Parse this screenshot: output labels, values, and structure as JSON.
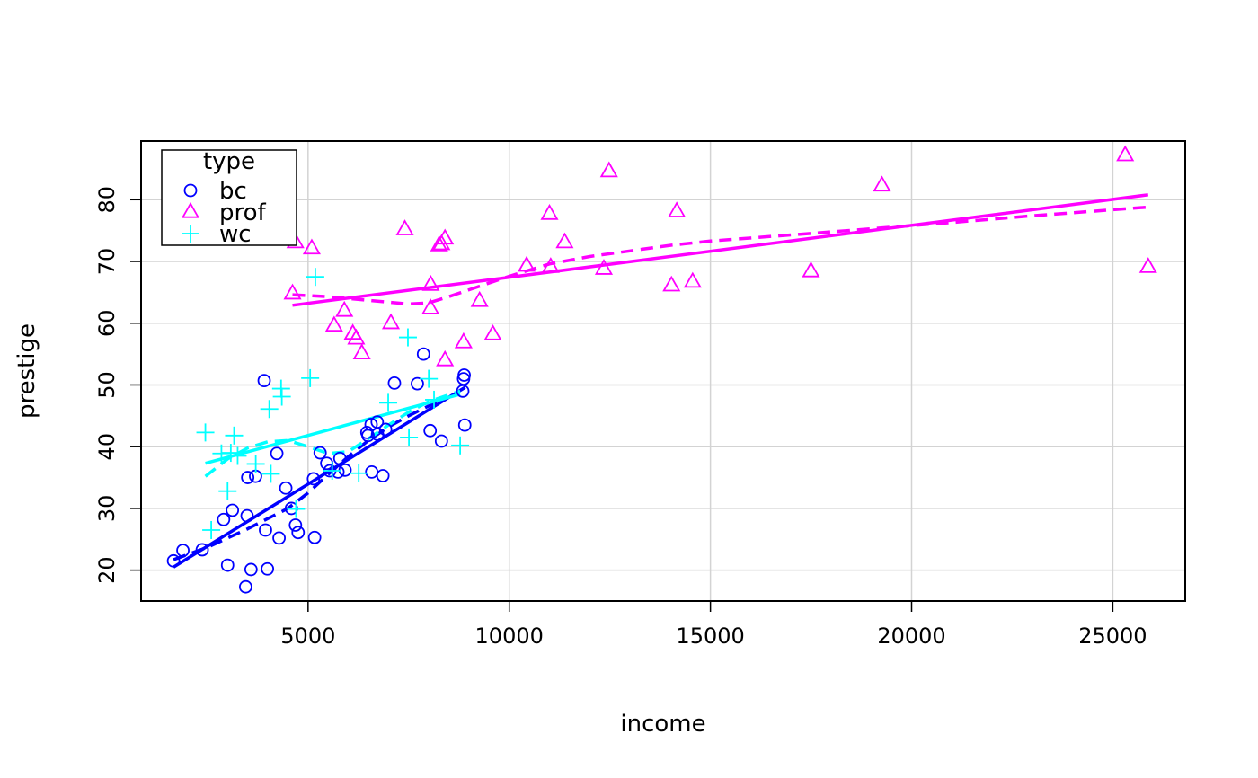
{
  "chart_data": {
    "type": "scatter",
    "xlabel": "income",
    "ylabel": "prestige",
    "xlim": [
      850,
      26800
    ],
    "ylim": [
      15,
      89.5
    ],
    "x_ticks": [
      5000,
      10000,
      15000,
      20000,
      25000
    ],
    "y_ticks": [
      20,
      30,
      40,
      50,
      60,
      70,
      80
    ],
    "grid": true,
    "legend": {
      "title": "type",
      "placement": "top-left",
      "entries": [
        "bc",
        "prof",
        "wc"
      ]
    },
    "series": [
      {
        "name": "bc",
        "color": "#0000ff",
        "marker": "circle",
        "points": [
          [
            1656,
            21.5
          ],
          [
            1890,
            23.2
          ],
          [
            2370,
            23.3
          ],
          [
            2901,
            28.2
          ],
          [
            3000,
            20.8
          ],
          [
            3120,
            29.7
          ],
          [
            3450,
            17.3
          ],
          [
            3485,
            28.8
          ],
          [
            3500,
            35.0
          ],
          [
            3582,
            20.1
          ],
          [
            3696,
            35.2
          ],
          [
            3942,
            26.5
          ],
          [
            3910,
            50.7
          ],
          [
            3990,
            20.2
          ],
          [
            4224,
            38.9
          ],
          [
            4280,
            25.2
          ],
          [
            4447,
            33.3
          ],
          [
            4586,
            30.0
          ],
          [
            4687,
            27.3
          ],
          [
            4753,
            26.1
          ],
          [
            5134,
            34.8
          ],
          [
            5163,
            25.3
          ],
          [
            5299,
            39.0
          ],
          [
            5464,
            37.3
          ],
          [
            5540,
            36.1
          ],
          [
            5743,
            35.9
          ],
          [
            5791,
            38.1
          ],
          [
            5920,
            36.2
          ],
          [
            6462,
            42.3
          ],
          [
            6490,
            41.8
          ],
          [
            6567,
            43.6
          ],
          [
            6582,
            35.9
          ],
          [
            6719,
            44.0
          ],
          [
            6727,
            42.0
          ],
          [
            6860,
            35.3
          ],
          [
            6928,
            42.8
          ],
          [
            7147,
            50.3
          ],
          [
            7716,
            50.2
          ],
          [
            7869,
            55.0
          ],
          [
            8034,
            42.6
          ],
          [
            8316,
            40.9
          ],
          [
            8845,
            49.0
          ],
          [
            8865,
            51.0
          ],
          [
            8880,
            51.6
          ],
          [
            8895,
            43.5
          ]
        ],
        "fit_line": [
          [
            1656,
            20.5
          ],
          [
            8900,
            49.6
          ]
        ],
        "smooth_line": [
          [
            1656,
            21.7
          ],
          [
            2500,
            23.7
          ],
          [
            3500,
            26.7
          ],
          [
            4500,
            30.0
          ],
          [
            5000,
            32.5
          ],
          [
            5500,
            35.5
          ],
          [
            6000,
            38.4
          ],
          [
            6500,
            41.0
          ],
          [
            7000,
            43.2
          ],
          [
            7500,
            45.0
          ],
          [
            8000,
            46.6
          ],
          [
            8500,
            48.0
          ],
          [
            8900,
            49.6
          ]
        ]
      },
      {
        "name": "prof",
        "color": "#ff00ff",
        "marker": "triangle",
        "points": [
          [
            4614,
            64.8
          ],
          [
            4686,
            73.1
          ],
          [
            5092,
            72.1
          ],
          [
            5648,
            59.6
          ],
          [
            5902,
            62.0
          ],
          [
            6112,
            58.3
          ],
          [
            6197,
            57.5
          ],
          [
            6336,
            55.1
          ],
          [
            7059,
            60.0
          ],
          [
            7405,
            75.2
          ],
          [
            8049,
            66.2
          ],
          [
            8043,
            62.4
          ],
          [
            8258,
            72.6
          ],
          [
            8316,
            72.8
          ],
          [
            8403,
            73.7
          ],
          [
            8403,
            54.0
          ],
          [
            8865,
            56.9
          ],
          [
            9263,
            63.6
          ],
          [
            9593,
            58.2
          ],
          [
            10432,
            69.3
          ],
          [
            11000,
            77.7
          ],
          [
            11030,
            69.1
          ],
          [
            11377,
            73.1
          ],
          [
            12351,
            68.8
          ],
          [
            12480,
            84.6
          ],
          [
            14032,
            66.1
          ],
          [
            14163,
            78.1
          ],
          [
            14558,
            66.7
          ],
          [
            17498,
            68.4
          ],
          [
            19263,
            82.3
          ],
          [
            25308,
            87.2
          ],
          [
            25879,
            69.1
          ]
        ],
        "fit_line": [
          [
            4614,
            62.9
          ],
          [
            25879,
            80.8
          ]
        ],
        "smooth_line": [
          [
            4614,
            64.6
          ],
          [
            5500,
            64.3
          ],
          [
            6500,
            63.7
          ],
          [
            7500,
            63.1
          ],
          [
            8000,
            63.3
          ],
          [
            8500,
            64.3
          ],
          [
            9000,
            65.4
          ],
          [
            10000,
            67.6
          ],
          [
            11000,
            69.6
          ],
          [
            12000,
            70.8
          ],
          [
            13000,
            71.7
          ],
          [
            14000,
            72.6
          ],
          [
            15000,
            73.3
          ],
          [
            17000,
            74.3
          ],
          [
            19000,
            75.3
          ],
          [
            21000,
            76.3
          ],
          [
            23000,
            77.4
          ],
          [
            25879,
            78.8
          ]
        ]
      },
      {
        "name": "wc",
        "color": "#00ffff",
        "marker": "plus",
        "points": [
          [
            2448,
            42.3
          ],
          [
            2594,
            26.5
          ],
          [
            2847,
            38.9
          ],
          [
            3000,
            32.8
          ],
          [
            3080,
            39.0
          ],
          [
            3161,
            41.8
          ],
          [
            3250,
            38.5
          ],
          [
            3700,
            37.2
          ],
          [
            4036,
            46.1
          ],
          [
            4075,
            35.6
          ],
          [
            4330,
            49.4
          ],
          [
            4348,
            48.1
          ],
          [
            4700,
            29.9
          ],
          [
            5052,
            51.1
          ],
          [
            5180,
            67.5
          ],
          [
            5600,
            36.1
          ],
          [
            6259,
            35.7
          ],
          [
            6992,
            47.1
          ],
          [
            7507,
            41.5
          ],
          [
            7482,
            57.7
          ],
          [
            8000,
            51.0
          ],
          [
            8131,
            47.6
          ],
          [
            8780,
            40.2
          ]
        ],
        "fit_line": [
          [
            2448,
            37.3
          ],
          [
            8780,
            48.5
          ]
        ],
        "smooth_line": [
          [
            2448,
            35.2
          ],
          [
            3000,
            38.0
          ],
          [
            3500,
            39.8
          ],
          [
            4000,
            40.8
          ],
          [
            4500,
            41.0
          ],
          [
            5000,
            40.0
          ],
          [
            5500,
            38.9
          ],
          [
            6000,
            39.2
          ],
          [
            6500,
            41.3
          ],
          [
            7000,
            43.5
          ],
          [
            7500,
            45.6
          ],
          [
            8000,
            47.3
          ],
          [
            8780,
            49.0
          ]
        ]
      }
    ]
  }
}
